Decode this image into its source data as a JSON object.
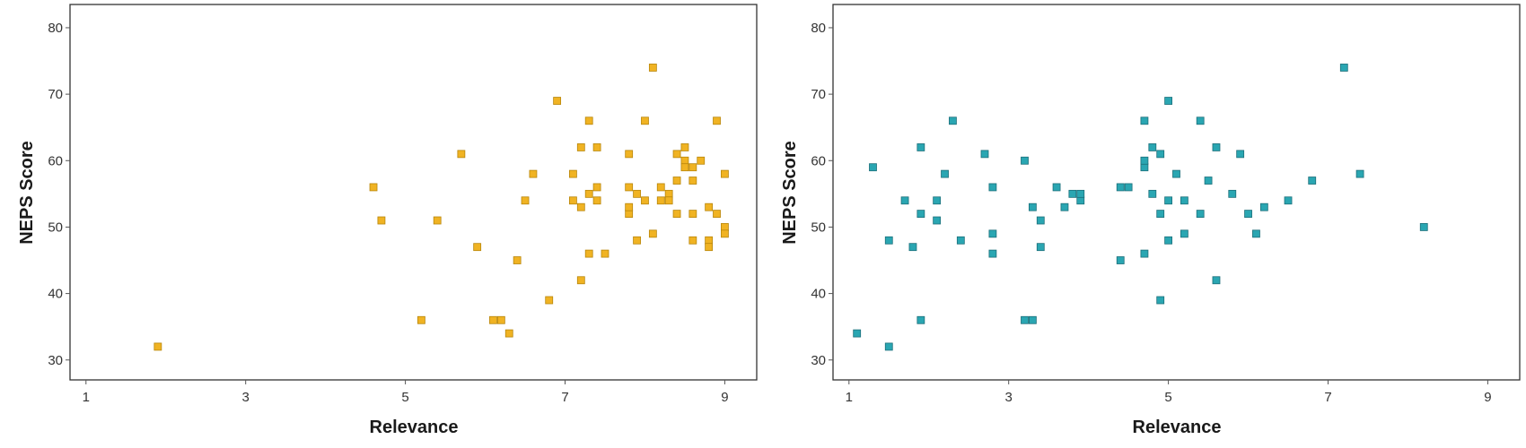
{
  "colors": {
    "left_fill": "#f0b323",
    "left_stroke": "#b8860b",
    "right_fill": "#2aa6b2",
    "right_stroke": "#1c6f7a",
    "axis": "#333333"
  },
  "chart_data": [
    {
      "type": "scatter",
      "xlabel": "Relevance",
      "ylabel": "NEPS Score",
      "xlim": [
        0.8,
        9.4
      ],
      "ylim": [
        27,
        83.5
      ],
      "xticks": [
        1,
        3,
        5,
        7,
        9
      ],
      "yticks": [
        30,
        40,
        50,
        60,
        70,
        80
      ],
      "grid": false,
      "marker": "square",
      "color": "#f0b323",
      "points": [
        {
          "x": 1.9,
          "y": 32
        },
        {
          "x": 4.6,
          "y": 56
        },
        {
          "x": 4.7,
          "y": 51
        },
        {
          "x": 5.2,
          "y": 36
        },
        {
          "x": 5.4,
          "y": 51
        },
        {
          "x": 5.7,
          "y": 61
        },
        {
          "x": 5.9,
          "y": 47
        },
        {
          "x": 6.1,
          "y": 36
        },
        {
          "x": 6.2,
          "y": 36
        },
        {
          "x": 6.3,
          "y": 34
        },
        {
          "x": 6.4,
          "y": 45
        },
        {
          "x": 6.5,
          "y": 54
        },
        {
          "x": 6.6,
          "y": 58
        },
        {
          "x": 6.8,
          "y": 39
        },
        {
          "x": 6.9,
          "y": 69
        },
        {
          "x": 7.1,
          "y": 58
        },
        {
          "x": 7.1,
          "y": 54
        },
        {
          "x": 7.2,
          "y": 62
        },
        {
          "x": 7.2,
          "y": 42
        },
        {
          "x": 7.2,
          "y": 53
        },
        {
          "x": 7.3,
          "y": 55
        },
        {
          "x": 7.3,
          "y": 46
        },
        {
          "x": 7.3,
          "y": 66
        },
        {
          "x": 7.4,
          "y": 62
        },
        {
          "x": 7.4,
          "y": 54
        },
        {
          "x": 7.4,
          "y": 56
        },
        {
          "x": 7.5,
          "y": 46
        },
        {
          "x": 7.8,
          "y": 52
        },
        {
          "x": 7.8,
          "y": 61
        },
        {
          "x": 7.8,
          "y": 56
        },
        {
          "x": 7.8,
          "y": 53
        },
        {
          "x": 7.9,
          "y": 48
        },
        {
          "x": 7.9,
          "y": 55
        },
        {
          "x": 8.0,
          "y": 66
        },
        {
          "x": 8.0,
          "y": 54
        },
        {
          "x": 8.1,
          "y": 74
        },
        {
          "x": 8.1,
          "y": 49
        },
        {
          "x": 8.2,
          "y": 54
        },
        {
          "x": 8.2,
          "y": 56
        },
        {
          "x": 8.3,
          "y": 55
        },
        {
          "x": 8.3,
          "y": 54
        },
        {
          "x": 8.4,
          "y": 52
        },
        {
          "x": 8.4,
          "y": 57
        },
        {
          "x": 8.4,
          "y": 61
        },
        {
          "x": 8.5,
          "y": 62
        },
        {
          "x": 8.5,
          "y": 60
        },
        {
          "x": 8.5,
          "y": 59
        },
        {
          "x": 8.6,
          "y": 59
        },
        {
          "x": 8.6,
          "y": 57
        },
        {
          "x": 8.6,
          "y": 52
        },
        {
          "x": 8.6,
          "y": 48
        },
        {
          "x": 8.7,
          "y": 60
        },
        {
          "x": 8.8,
          "y": 53
        },
        {
          "x": 8.8,
          "y": 48
        },
        {
          "x": 8.8,
          "y": 47
        },
        {
          "x": 8.9,
          "y": 52
        },
        {
          "x": 8.9,
          "y": 66
        },
        {
          "x": 9.0,
          "y": 58
        },
        {
          "x": 9.0,
          "y": 50
        },
        {
          "x": 9.0,
          "y": 49
        }
      ]
    },
    {
      "type": "scatter",
      "xlabel": "Relevance",
      "ylabel": "NEPS Score",
      "xlim": [
        0.8,
        9.4
      ],
      "ylim": [
        27,
        83.5
      ],
      "xticks": [
        1,
        3,
        5,
        7,
        9
      ],
      "yticks": [
        30,
        40,
        50,
        60,
        70,
        80
      ],
      "grid": false,
      "marker": "square",
      "color": "#2aa6b2",
      "points": [
        {
          "x": 1.1,
          "y": 34
        },
        {
          "x": 1.3,
          "y": 59
        },
        {
          "x": 1.5,
          "y": 48
        },
        {
          "x": 1.5,
          "y": 32
        },
        {
          "x": 1.7,
          "y": 54
        },
        {
          "x": 1.8,
          "y": 47
        },
        {
          "x": 1.9,
          "y": 62
        },
        {
          "x": 1.9,
          "y": 36
        },
        {
          "x": 1.9,
          "y": 52
        },
        {
          "x": 2.1,
          "y": 51
        },
        {
          "x": 2.1,
          "y": 54
        },
        {
          "x": 2.2,
          "y": 58
        },
        {
          "x": 2.3,
          "y": 66
        },
        {
          "x": 2.4,
          "y": 48
        },
        {
          "x": 2.7,
          "y": 61
        },
        {
          "x": 2.8,
          "y": 56
        },
        {
          "x": 2.8,
          "y": 49
        },
        {
          "x": 2.8,
          "y": 46
        },
        {
          "x": 3.2,
          "y": 60
        },
        {
          "x": 3.2,
          "y": 36
        },
        {
          "x": 3.3,
          "y": 36
        },
        {
          "x": 3.3,
          "y": 53
        },
        {
          "x": 3.4,
          "y": 47
        },
        {
          "x": 3.4,
          "y": 51
        },
        {
          "x": 3.6,
          "y": 56
        },
        {
          "x": 3.7,
          "y": 53
        },
        {
          "x": 3.8,
          "y": 55
        },
        {
          "x": 3.9,
          "y": 54
        },
        {
          "x": 3.9,
          "y": 55
        },
        {
          "x": 4.4,
          "y": 56
        },
        {
          "x": 4.4,
          "y": 45
        },
        {
          "x": 4.5,
          "y": 56
        },
        {
          "x": 4.7,
          "y": 59
        },
        {
          "x": 4.7,
          "y": 60
        },
        {
          "x": 4.7,
          "y": 66
        },
        {
          "x": 4.7,
          "y": 46
        },
        {
          "x": 4.8,
          "y": 62
        },
        {
          "x": 4.8,
          "y": 55
        },
        {
          "x": 4.9,
          "y": 61
        },
        {
          "x": 4.9,
          "y": 52
        },
        {
          "x": 4.9,
          "y": 39
        },
        {
          "x": 5.0,
          "y": 69
        },
        {
          "x": 5.0,
          "y": 54
        },
        {
          "x": 5.0,
          "y": 48
        },
        {
          "x": 5.1,
          "y": 58
        },
        {
          "x": 5.2,
          "y": 54
        },
        {
          "x": 5.2,
          "y": 49
        },
        {
          "x": 5.4,
          "y": 66
        },
        {
          "x": 5.4,
          "y": 52
        },
        {
          "x": 5.5,
          "y": 57
        },
        {
          "x": 5.6,
          "y": 62
        },
        {
          "x": 5.6,
          "y": 42
        },
        {
          "x": 5.8,
          "y": 55
        },
        {
          "x": 5.9,
          "y": 61
        },
        {
          "x": 6.0,
          "y": 52
        },
        {
          "x": 6.1,
          "y": 49
        },
        {
          "x": 6.2,
          "y": 53
        },
        {
          "x": 6.5,
          "y": 54
        },
        {
          "x": 6.8,
          "y": 57
        },
        {
          "x": 7.2,
          "y": 74
        },
        {
          "x": 7.4,
          "y": 58
        },
        {
          "x": 8.2,
          "y": 50
        }
      ]
    }
  ]
}
